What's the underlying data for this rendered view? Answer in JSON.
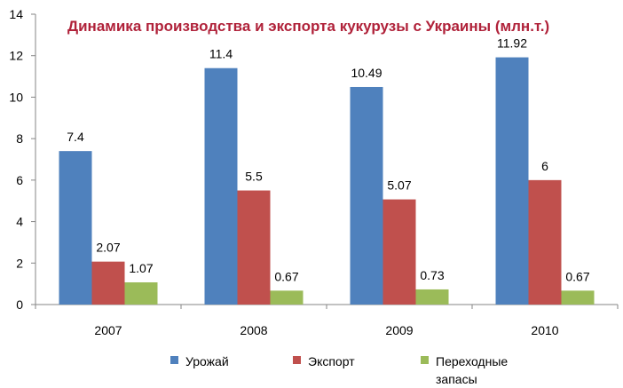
{
  "chart_data": {
    "type": "bar",
    "title": "Динамика производства и экспорта кукурузы с Украины (млн.т.)",
    "categories": [
      "2007",
      "2008",
      "2009",
      "2010"
    ],
    "series": [
      {
        "name": "Урожай",
        "values": [
          7.4,
          11.4,
          10.49,
          11.92
        ],
        "labels": [
          "7.4",
          "11.4",
          "10.49",
          "11.92"
        ],
        "color": "#4f81bd"
      },
      {
        "name": "Экспорт",
        "values": [
          2.07,
          5.5,
          5.07,
          6
        ],
        "labels": [
          "2.07",
          "5.5",
          "5.07",
          "6"
        ],
        "color": "#c0504d"
      },
      {
        "name": "Переходные запасы",
        "values": [
          1.07,
          0.67,
          0.73,
          0.67
        ],
        "labels": [
          "1.07",
          "0.67",
          "0.73",
          "0.67"
        ],
        "color": "#9bbb59"
      }
    ],
    "ylim": [
      0,
      14
    ],
    "yticks": [
      "0",
      "2",
      "4",
      "6",
      "8",
      "10",
      "12",
      "14"
    ],
    "grid": false,
    "legend_position": "bottom"
  }
}
